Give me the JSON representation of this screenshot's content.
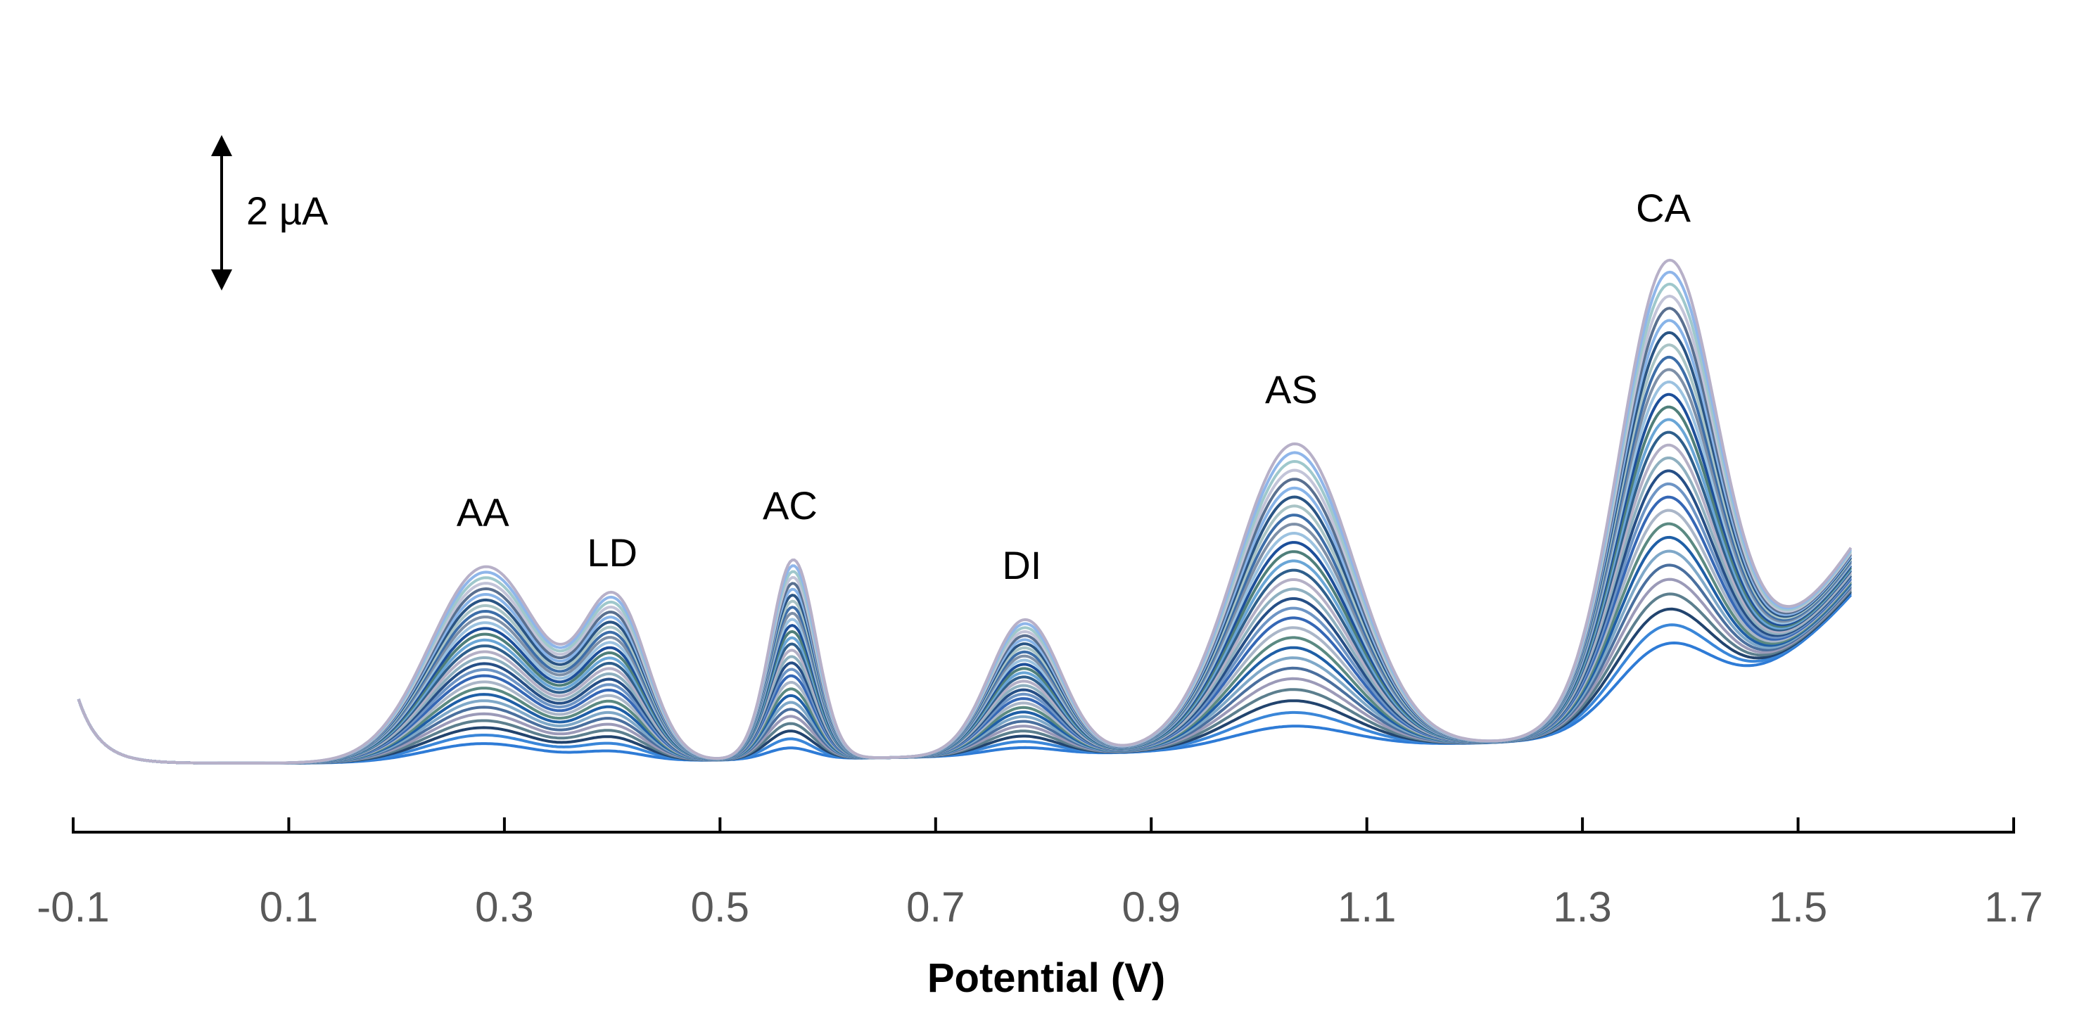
{
  "chart_data": {
    "type": "line",
    "title": "",
    "xlabel": "Potential (V)",
    "ylabel": "",
    "xlim": [
      -0.1,
      1.7
    ],
    "xticks": [
      "-0.1",
      "0.1",
      "0.3",
      "0.5",
      "0.7",
      "0.9",
      "1.1",
      "1.3",
      "1.5",
      "1.7"
    ],
    "ylim": [
      -1.5,
      13.5
    ],
    "y_units": "µA",
    "grid": false,
    "legend": "none",
    "scale_bar": {
      "label": "2 µA",
      "value": 2
    },
    "x_start": -0.095,
    "x_end": 1.55,
    "n_series": 30,
    "series_colors": [
      "#2e7bd6",
      "#3a86d8",
      "#22446e",
      "#5c7f8e",
      "#9b9ab8",
      "#4a6f9e",
      "#7fa8c8",
      "#1f5fa6",
      "#5b8a82",
      "#aab6c8",
      "#3567b5",
      "#6e95c5",
      "#264f86",
      "#8fb0c0",
      "#b4b0c6",
      "#2f5f8c",
      "#6aa6d6",
      "#4f7f7a",
      "#1d4f9a",
      "#9cc2e0",
      "#7e90a8",
      "#3d6ea8",
      "#a9c4c6",
      "#2a5584",
      "#88b4e8",
      "#5a7090",
      "#c2c4d8",
      "#9fc8cc",
      "#8fb6ea",
      "#b7b0c8"
    ],
    "peaks": [
      {
        "label": "AA",
        "x": 0.28,
        "amplitude_min": 0.25,
        "amplitude_max": 2.6,
        "width": 0.052
      },
      {
        "label": "LD",
        "x": 0.4,
        "amplitude_min": 0.12,
        "amplitude_max": 2.05,
        "width": 0.03
      },
      {
        "label": "AC",
        "x": 0.565,
        "amplitude_min": 0.15,
        "amplitude_max": 2.65,
        "width": 0.021
      },
      {
        "label": "DI",
        "x": 0.78,
        "amplitude_min": 0.1,
        "amplitude_max": 1.8,
        "width": 0.033
      },
      {
        "label": "AS",
        "x": 1.03,
        "amplitude_min": 0.3,
        "amplitude_max": 4.05,
        "width": 0.055
      },
      {
        "label": "CA",
        "x": 1.375,
        "amplitude_min": 1.0,
        "amplitude_max": 6.0,
        "width": 0.045
      }
    ]
  }
}
